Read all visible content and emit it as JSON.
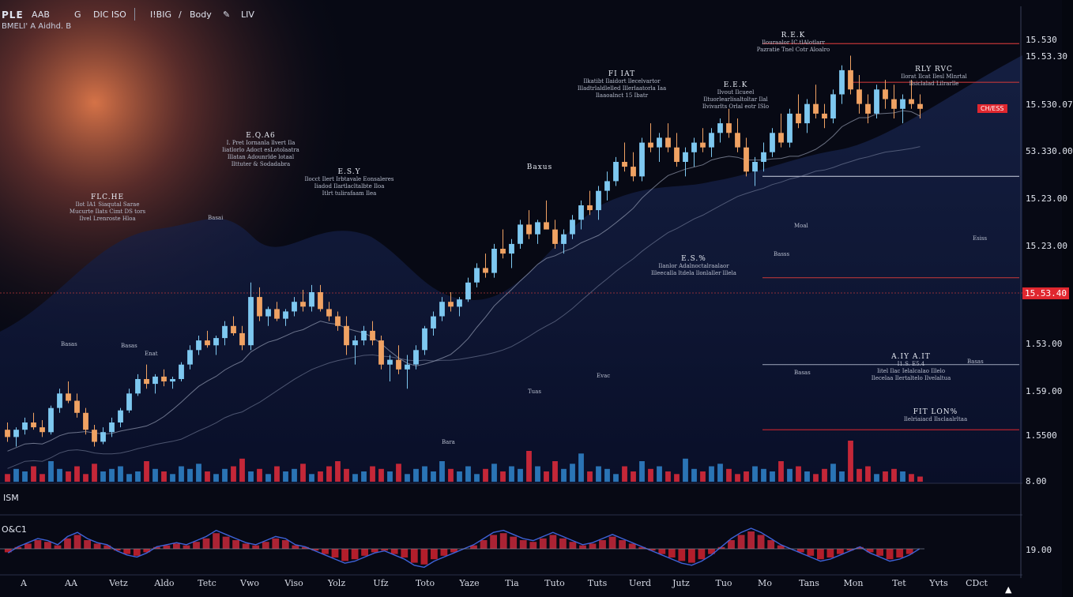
{
  "header": {
    "symbol": "PLE",
    "items": [
      "AAB",
      "G",
      "DIC ISO",
      "I!BIG",
      "/",
      "Body",
      "LIV"
    ],
    "subtitle": "BMELI' A Aidhd. B",
    "colors": {
      "accent_up": "#7ec8f0",
      "accent_down": "#f0a263",
      "alert_red": "#e0272f",
      "panel_bg": "#05070f"
    }
  },
  "price_axis": {
    "labels": [
      {
        "text": "15.530",
        "red": false
      },
      {
        "text": "15.53.30",
        "red": false
      },
      {
        "text": "15.530.07",
        "red": false
      },
      {
        "text": "53.330.00",
        "red": false
      },
      {
        "text": "15.23.00",
        "red": false
      },
      {
        "text": "15.23.00",
        "red": false
      },
      {
        "text": "15.53.40",
        "red": true
      },
      {
        "text": "1.53.00",
        "red": false
      },
      {
        "text": "1.59.00",
        "red": false
      },
      {
        "text": "1.5500",
        "red": false
      },
      {
        "text": "8.00",
        "red": false
      }
    ],
    "osc_label": "19.00"
  },
  "time_axis": {
    "labels": [
      "A",
      "AA",
      "Vetz",
      "Aldo",
      "Tetc",
      "Vwo",
      "Viso",
      "Yolz",
      "Ufz",
      "Toto",
      "Yaze",
      "Tia",
      "Tuto",
      "Tuts",
      "Uerd",
      "Jutz",
      "Tuo",
      "Mo",
      "Tans",
      "Mon",
      "Tet",
      "Yvts",
      "CDct"
    ]
  },
  "annotations": [
    {
      "title": "E.Q.A6",
      "lines": [
        "I. Pret Iornanla llvert Ila",
        "Iiatlorlo Adoct esLotolaatra",
        "Illatan Adounrlde lotaal",
        "Ilttuter & Sodadabra"
      ]
    },
    {
      "title": "FLC.HE",
      "lines": [
        "Ilot IA1 Siaqutal Sarae",
        "Mucurte Ilats Cimt DS tors",
        "Ilvel Lrenroste Hloa"
      ]
    },
    {
      "title": "E.S.Y",
      "lines": [
        "Ilocct Ilert Irbtavale Eonsaleres",
        "Iiadod Ilartlacltalbte Iloa",
        "Itlrt tulirafaam Ilea"
      ]
    },
    {
      "title": "FI IAT",
      "lines": [
        "Ilkatibt Ilaidort llecelvartor",
        "Illadtrlaldlelled Illerlaatorla Iaa",
        "Ilaaoalnct 15 Ibatr"
      ]
    },
    {
      "title": "E.E.K",
      "lines": [
        "Ilvout Ilcueel",
        "Iltuorlearlisaltoltar Ilal",
        "Ilvivarlts Orlal eotr ISlo"
      ]
    },
    {
      "title": "R.E.K",
      "lines": [
        "Ilouraalor IC.tlAlotlarr",
        "Pazratie Tnel Cotr Aloalro"
      ]
    },
    {
      "title": "Baxus",
      "lines": []
    },
    {
      "title": "RLY RVC",
      "lines": [
        "Ilorat Ilcat Ilesl Mlnrtal",
        "Ilsiclalad Lilrarlle"
      ]
    },
    {
      "title": "E.S.%",
      "lines": [
        "Ilanlor Adalnoctalraalaor",
        "Illeecalla ltdela llonlaller lllela"
      ]
    },
    {
      "title": "A.IY A.IT",
      "lines": [
        "I1.S. E5.4",
        "Iitel Ilac Ielalcalao Illelo",
        "Ilecelaa Ilertaltelo Ilvelaltua"
      ]
    },
    {
      "title": "FIT LON%",
      "lines": [
        "Ilelriaiacd Ilsclaalrltaa"
      ]
    }
  ],
  "labels": {
    "volume_label": "ISM",
    "oscillator_label": "O&C1",
    "red_tag": "CH/ESS",
    "small_marks": [
      "Basas",
      "Enat",
      "Basai",
      "Basas",
      "Tuas",
      "Evac",
      "Basas",
      "Basss",
      "Esiss",
      "Moal",
      "Bara",
      "Basas"
    ]
  },
  "chart_data": {
    "type": "candlestick",
    "title": "",
    "xlabel": "",
    "ylabel": "",
    "grid": false,
    "candles": [
      [
        0.35,
        0.38,
        0.3,
        0.32
      ],
      [
        0.32,
        0.36,
        0.28,
        0.35
      ],
      [
        0.35,
        0.4,
        0.33,
        0.38
      ],
      [
        0.38,
        0.42,
        0.35,
        0.36
      ],
      [
        0.36,
        0.39,
        0.32,
        0.34
      ],
      [
        0.34,
        0.45,
        0.33,
        0.44
      ],
      [
        0.44,
        0.52,
        0.42,
        0.5
      ],
      [
        0.5,
        0.55,
        0.46,
        0.47
      ],
      [
        0.47,
        0.5,
        0.4,
        0.42
      ],
      [
        0.42,
        0.44,
        0.33,
        0.35
      ],
      [
        0.35,
        0.37,
        0.28,
        0.3
      ],
      [
        0.3,
        0.36,
        0.29,
        0.34
      ],
      [
        0.34,
        0.4,
        0.32,
        0.38
      ],
      [
        0.38,
        0.44,
        0.36,
        0.43
      ],
      [
        0.43,
        0.52,
        0.42,
        0.5
      ],
      [
        0.5,
        0.58,
        0.49,
        0.56
      ],
      [
        0.56,
        0.62,
        0.52,
        0.54
      ],
      [
        0.54,
        0.58,
        0.5,
        0.57
      ],
      [
        0.57,
        0.6,
        0.53,
        0.55
      ],
      [
        0.55,
        0.57,
        0.52,
        0.56
      ],
      [
        0.56,
        0.63,
        0.55,
        0.62
      ],
      [
        0.62,
        0.7,
        0.6,
        0.68
      ],
      [
        0.68,
        0.74,
        0.66,
        0.72
      ],
      [
        0.72,
        0.76,
        0.69,
        0.7
      ],
      [
        0.7,
        0.74,
        0.66,
        0.73
      ],
      [
        0.73,
        0.8,
        0.7,
        0.78
      ],
      [
        0.78,
        0.82,
        0.74,
        0.75
      ],
      [
        0.75,
        0.78,
        0.68,
        0.7
      ],
      [
        0.7,
        0.96,
        0.68,
        0.9
      ],
      [
        0.9,
        0.94,
        0.8,
        0.82
      ],
      [
        0.82,
        0.86,
        0.78,
        0.85
      ],
      [
        0.85,
        0.88,
        0.8,
        0.81
      ],
      [
        0.81,
        0.85,
        0.78,
        0.84
      ],
      [
        0.84,
        0.9,
        0.82,
        0.88
      ],
      [
        0.88,
        0.93,
        0.84,
        0.86
      ],
      [
        0.86,
        0.95,
        0.84,
        0.92
      ],
      [
        0.92,
        0.95,
        0.84,
        0.85
      ],
      [
        0.85,
        0.88,
        0.8,
        0.82
      ],
      [
        0.82,
        0.84,
        0.76,
        0.78
      ],
      [
        0.78,
        0.82,
        0.66,
        0.7
      ],
      [
        0.7,
        0.74,
        0.62,
        0.72
      ],
      [
        0.72,
        0.78,
        0.7,
        0.76
      ],
      [
        0.76,
        0.8,
        0.7,
        0.72
      ],
      [
        0.72,
        0.74,
        0.6,
        0.62
      ],
      [
        0.62,
        0.66,
        0.55,
        0.64
      ],
      [
        0.64,
        0.7,
        0.58,
        0.6
      ],
      [
        0.6,
        0.66,
        0.52,
        0.62
      ],
      [
        0.62,
        0.7,
        0.6,
        0.68
      ],
      [
        0.68,
        0.78,
        0.66,
        0.77
      ],
      [
        0.77,
        0.84,
        0.74,
        0.82
      ],
      [
        0.82,
        0.9,
        0.8,
        0.88
      ],
      [
        0.88,
        0.92,
        0.84,
        0.86
      ],
      [
        0.86,
        0.9,
        0.82,
        0.89
      ],
      [
        0.89,
        0.98,
        0.88,
        0.96
      ],
      [
        0.96,
        1.04,
        0.94,
        1.02
      ],
      [
        1.02,
        1.08,
        0.98,
        1.0
      ],
      [
        1.0,
        1.12,
        0.98,
        1.1
      ],
      [
        1.1,
        1.18,
        1.06,
        1.08
      ],
      [
        1.08,
        1.14,
        1.02,
        1.12
      ],
      [
        1.12,
        1.22,
        1.1,
        1.2
      ],
      [
        1.2,
        1.26,
        1.14,
        1.16
      ],
      [
        1.16,
        1.22,
        1.12,
        1.21
      ],
      [
        1.21,
        1.3,
        1.18,
        1.18
      ],
      [
        1.18,
        1.22,
        1.1,
        1.12
      ],
      [
        1.12,
        1.18,
        1.08,
        1.16
      ],
      [
        1.16,
        1.24,
        1.14,
        1.22
      ],
      [
        1.22,
        1.3,
        1.18,
        1.28
      ],
      [
        1.28,
        1.34,
        1.24,
        1.26
      ],
      [
        1.26,
        1.36,
        1.22,
        1.34
      ],
      [
        1.34,
        1.42,
        1.3,
        1.38
      ],
      [
        1.38,
        1.48,
        1.36,
        1.46
      ],
      [
        1.46,
        1.54,
        1.42,
        1.44
      ],
      [
        1.44,
        1.5,
        1.38,
        1.4
      ],
      [
        1.4,
        1.56,
        1.38,
        1.54
      ],
      [
        1.54,
        1.62,
        1.5,
        1.52
      ],
      [
        1.52,
        1.58,
        1.46,
        1.56
      ],
      [
        1.56,
        1.62,
        1.5,
        1.52
      ],
      [
        1.52,
        1.58,
        1.44,
        1.46
      ],
      [
        1.46,
        1.52,
        1.4,
        1.5
      ],
      [
        1.5,
        1.56,
        1.44,
        1.54
      ],
      [
        1.54,
        1.6,
        1.5,
        1.52
      ],
      [
        1.52,
        1.6,
        1.48,
        1.58
      ],
      [
        1.58,
        1.64,
        1.54,
        1.62
      ],
      [
        1.62,
        1.68,
        1.56,
        1.58
      ],
      [
        1.58,
        1.64,
        1.5,
        1.52
      ],
      [
        1.52,
        1.56,
        1.4,
        1.42
      ],
      [
        1.42,
        1.48,
        1.36,
        1.46
      ],
      [
        1.46,
        1.54,
        1.42,
        1.5
      ],
      [
        1.5,
        1.6,
        1.48,
        1.58
      ],
      [
        1.58,
        1.66,
        1.52,
        1.54
      ],
      [
        1.54,
        1.68,
        1.52,
        1.66
      ],
      [
        1.66,
        1.74,
        1.6,
        1.62
      ],
      [
        1.62,
        1.72,
        1.58,
        1.7
      ],
      [
        1.7,
        1.78,
        1.64,
        1.66
      ],
      [
        1.66,
        1.7,
        1.6,
        1.64
      ],
      [
        1.64,
        1.76,
        1.62,
        1.74
      ],
      [
        1.74,
        1.86,
        1.7,
        1.84
      ],
      [
        1.84,
        1.9,
        1.74,
        1.76
      ],
      [
        1.76,
        1.82,
        1.66,
        1.7
      ],
      [
        1.7,
        1.74,
        1.62,
        1.66
      ],
      [
        1.66,
        1.78,
        1.64,
        1.76
      ],
      [
        1.76,
        1.8,
        1.68,
        1.72
      ],
      [
        1.72,
        1.78,
        1.64,
        1.68
      ],
      [
        1.68,
        1.74,
        1.62,
        1.72
      ],
      [
        1.72,
        1.8,
        1.68,
        1.7
      ],
      [
        1.7,
        1.74,
        1.64,
        1.68
      ]
    ],
    "volume": [
      3,
      5,
      4,
      6,
      3,
      8,
      5,
      4,
      6,
      3,
      7,
      4,
      5,
      6,
      3,
      4,
      8,
      5,
      4,
      3,
      6,
      5,
      7,
      4,
      3,
      5,
      6,
      9,
      4,
      5,
      3,
      6,
      4,
      5,
      7,
      3,
      4,
      6,
      8,
      5,
      3,
      4,
      6,
      5,
      4,
      7,
      3,
      5,
      6,
      4,
      8,
      5,
      4,
      6,
      3,
      5,
      7,
      4,
      6,
      5,
      12,
      6,
      4,
      8,
      5,
      7,
      11,
      4,
      6,
      5,
      3,
      6,
      4,
      8,
      5,
      6,
      4,
      3,
      9,
      5,
      4,
      6,
      7,
      5,
      3,
      4,
      6,
      5,
      4,
      8,
      5,
      6,
      4,
      3,
      5,
      7,
      4,
      16,
      5,
      6,
      3,
      4,
      5,
      4,
      3,
      2
    ],
    "oscillator": [
      -0.2,
      0.1,
      0.3,
      0.5,
      0.4,
      0.2,
      0.6,
      0.8,
      0.5,
      0.3,
      0.2,
      -0.1,
      -0.3,
      -0.4,
      -0.2,
      0.1,
      0.2,
      0.3,
      0.2,
      0.4,
      0.6,
      0.9,
      0.7,
      0.5,
      0.3,
      0.2,
      0.4,
      0.6,
      0.5,
      0.2,
      0.1,
      -0.1,
      -0.3,
      -0.5,
      -0.7,
      -0.6,
      -0.4,
      -0.2,
      -0.1,
      -0.3,
      -0.5,
      -0.8,
      -0.9,
      -0.6,
      -0.4,
      -0.2,
      0.0,
      0.2,
      0.5,
      0.8,
      0.9,
      0.7,
      0.5,
      0.4,
      0.6,
      0.8,
      0.6,
      0.4,
      0.2,
      0.3,
      0.5,
      0.7,
      0.5,
      0.3,
      0.1,
      -0.1,
      -0.3,
      -0.5,
      -0.7,
      -0.8,
      -0.6,
      -0.3,
      0.1,
      0.5,
      0.8,
      1.0,
      0.8,
      0.5,
      0.2,
      0.0,
      -0.2,
      -0.4,
      -0.6,
      -0.5,
      -0.3,
      -0.1,
      0.1,
      -0.2,
      -0.4,
      -0.6,
      -0.5,
      -0.3,
      0.0
    ],
    "levels": [
      0.35,
      0.62,
      0.98,
      1.4,
      1.79,
      1.95
    ],
    "y_range": [
      0.2,
      2.0
    ]
  }
}
